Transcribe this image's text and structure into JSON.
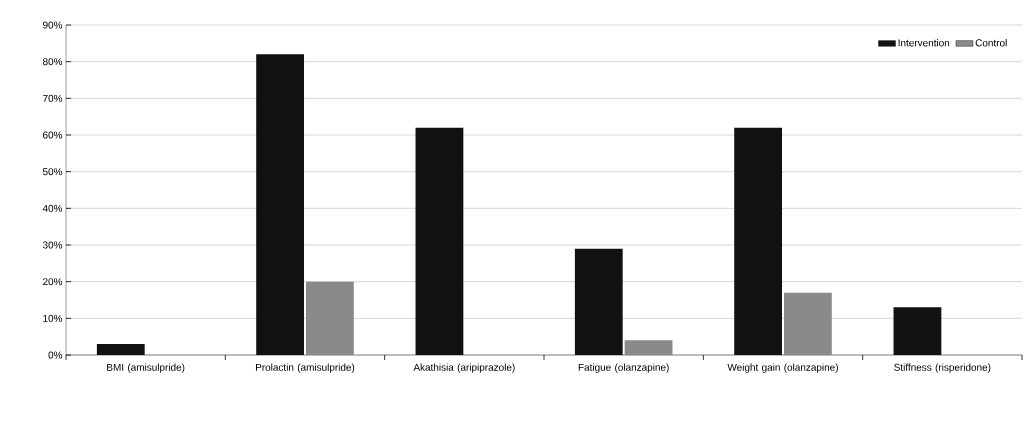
{
  "chart_data": {
    "type": "bar",
    "categories": [
      "BMI (amisulpride)",
      "Prolactin (amisulpride)",
      "Akathisia (aripiprazole)",
      "Fatigue (olanzapine)",
      "Weight gain (olanzapine)",
      "Stiffness (risperidone)"
    ],
    "series": [
      {
        "name": "Intervention",
        "color": "#111111",
        "values": [
          3,
          82,
          62,
          29,
          62,
          13
        ]
      },
      {
        "name": "Control",
        "color": "#8a8a8a",
        "values": [
          null,
          20,
          null,
          4,
          17,
          null
        ]
      }
    ],
    "ylim": [
      0,
      90
    ],
    "yticks": [
      {
        "value": 0,
        "label": "0%"
      },
      {
        "value": 10,
        "label": "10%"
      },
      {
        "value": 20,
        "label": "20%"
      },
      {
        "value": 30,
        "label": "30%"
      },
      {
        "value": 40,
        "label": "40%"
      },
      {
        "value": 50,
        "label": "50%"
      },
      {
        "value": 60,
        "label": "60%"
      },
      {
        "value": 70,
        "label": "70%"
      },
      {
        "value": 80,
        "label": "80%"
      },
      {
        "value": 90,
        "label": "90%"
      }
    ],
    "grid": "y",
    "legend": "top right"
  }
}
